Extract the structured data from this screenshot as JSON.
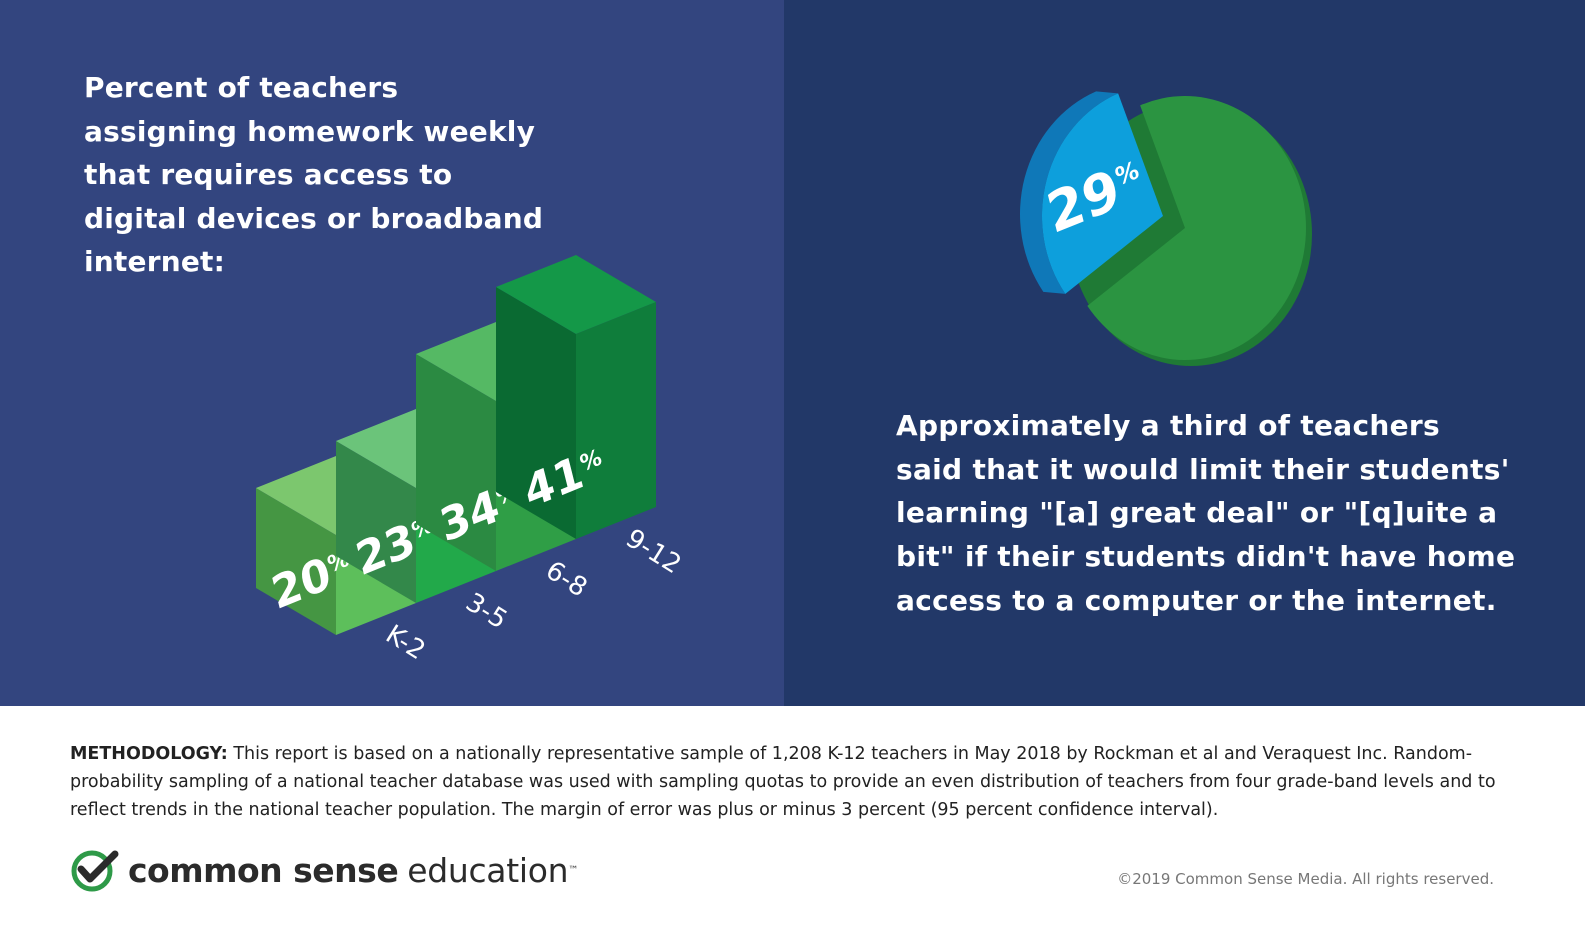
{
  "chart_data": [
    {
      "type": "bar",
      "title": "Percent of teachers assigning homework weekly that requires access to digital devices or broadband internet:",
      "categories": [
        "K-2",
        "3-5",
        "6-8",
        "9-12"
      ],
      "values": [
        20,
        23,
        34,
        41
      ],
      "value_labels": [
        "20",
        "23",
        "34",
        "41"
      ],
      "unit_label": "%",
      "colors": {
        "front": [
          "#5dbf5b",
          "#22a94a",
          "#2f9e46",
          "#0f7d3b"
        ],
        "side": [
          "#459643",
          "#33884a",
          "#2b8a42",
          "#0a6a32"
        ],
        "top": [
          "#7cc76e",
          "#6bc47a",
          "#55b964",
          "#149848"
        ]
      }
    },
    {
      "type": "pie",
      "values": [
        29,
        71
      ],
      "value_labels": [
        "29",
        ""
      ],
      "unit_label": "%",
      "colors": [
        "#0d9fdc",
        "#2b9441"
      ]
    }
  ],
  "right_panel": {
    "text": "Approximately a third of teachers said that it would limit their students' learning \"[a] great deal\" or \"[q]uite a bit\" if their students didn't have home access to a computer or the internet."
  },
  "footer": {
    "methodology_label": "METHODOLOGY:",
    "methodology_text": "This report is based on a nationally representative sample of 1,208 K-12 teachers in May 2018 by Rockman et al and Veraquest Inc. Random-probability sampling of a national teacher database was used with sampling quotas to provide an even distribution of teachers from four grade-band levels and to reflect trends in the national teacher population. The margin of error was plus or minus 3 percent (95 percent confidence interval).",
    "logo_word1": "common sense",
    "logo_word2": "education",
    "logo_tm": "™",
    "copyright": "©2019 Common Sense Media. All rights reserved."
  },
  "colors": {
    "left_panel_bg": "#33457f",
    "right_panel_bg": "#223868",
    "logo_green": "#2e9a48"
  }
}
